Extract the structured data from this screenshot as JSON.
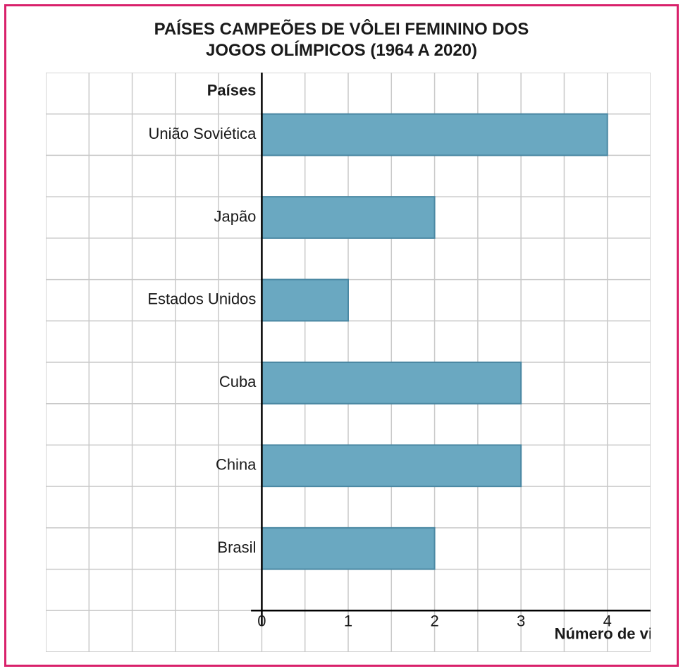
{
  "frame_border_color": "#d9216b",
  "title": {
    "line1": "PAÍSES CAMPEÕES DE VÔLEI FEMININO DOS",
    "line2": "JOGOS OLÍMPICOS (1964 A 2020)",
    "fontsize": 24,
    "color": "#1a1a1a"
  },
  "chart": {
    "type": "bar-horizontal",
    "y_axis_title": "Países",
    "x_axis_title": "Número de vitórias",
    "axis_title_fontsize": 22,
    "category_label_fontsize": 22,
    "tick_label_fontsize": 22,
    "categories": [
      "União Soviética",
      "Japão",
      "Estados Unidos",
      "Cuba",
      "China",
      "Brasil"
    ],
    "values": [
      4,
      2,
      1,
      3,
      3,
      2
    ],
    "xlim": [
      0,
      5
    ],
    "xtick_step": 1,
    "xtick_labels": [
      "0",
      "1",
      "2",
      "3",
      "4"
    ],
    "grid": {
      "cols": 14,
      "rows": 14,
      "color": "#c9c9c9",
      "line_width": 1.5,
      "y_axis_col": 5
    },
    "bar": {
      "fill": "#6aa8c1",
      "stroke": "#4b88a3",
      "height_cells": 1
    },
    "axis_color": "#000000",
    "background_color": "#ffffff",
    "label_fontfamily": "Arial"
  }
}
